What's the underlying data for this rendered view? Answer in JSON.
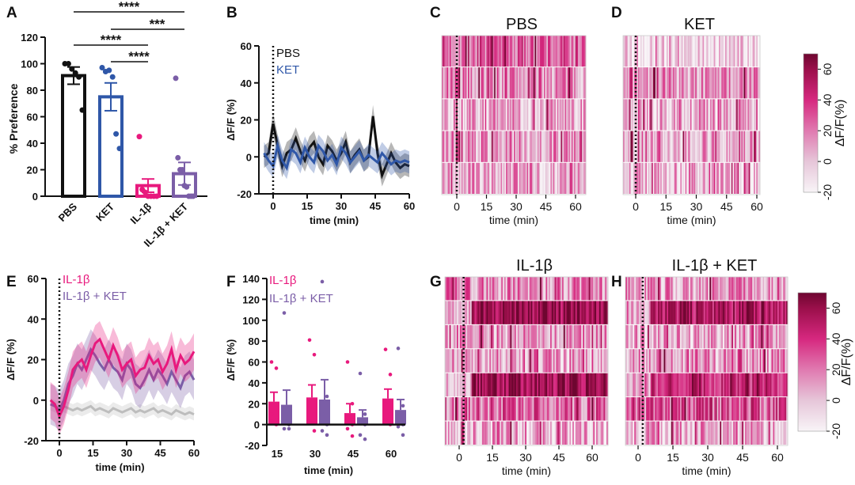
{
  "panel_labels": [
    "A",
    "B",
    "C",
    "D",
    "E",
    "F",
    "G",
    "H"
  ],
  "colors": {
    "pbs": "#111111",
    "ket": "#2f57a8",
    "il1b": "#e8197d",
    "il1b_ket": "#7b5ea7",
    "control": "#bdbdbd"
  },
  "colormap": {
    "stops": [
      -20,
      0,
      20,
      40,
      60,
      70
    ],
    "colors": [
      "#f8f4f7",
      "#e6c6d9",
      "#e07ab0",
      "#d6287f",
      "#9a0f4a",
      "#6e0630"
    ]
  },
  "chart_data": [
    {
      "panel": "A",
      "type": "bar",
      "categories": [
        "PBS",
        "KET",
        "IL-1β",
        "IL-1β + KET"
      ],
      "values": [
        91,
        75,
        8,
        17
      ],
      "sem": [
        6.5,
        10.5,
        5,
        8.5
      ],
      "points": [
        [
          100,
          100,
          96,
          93,
          90,
          65
        ],
        [
          97,
          94,
          95,
          90,
          47,
          36
        ],
        [
          45,
          5,
          3,
          0,
          0,
          0,
          0
        ],
        [
          89,
          29,
          20,
          20,
          8,
          7,
          0,
          0,
          0
        ]
      ],
      "ylabel": "% Preference",
      "ylim": [
        0,
        120
      ],
      "yticks": [
        "0",
        "20",
        "40",
        "60",
        "80",
        "100",
        "120"
      ],
      "significance": [
        {
          "from": 0,
          "to": 3,
          "label": "****"
        },
        {
          "from": 1,
          "to": 3,
          "label": "***"
        },
        {
          "from": 0,
          "to": 2,
          "label": "****"
        },
        {
          "from": 1,
          "to": 2,
          "label": "****"
        }
      ]
    },
    {
      "panel": "B",
      "type": "line",
      "xlabel": "time (min)",
      "ylabel": "ΔF/F (%)",
      "xlim": [
        -5,
        60
      ],
      "ylim": [
        -20,
        60
      ],
      "xticks": [
        "0",
        "15",
        "30",
        "45",
        "60"
      ],
      "yticks": [
        "-20",
        "0",
        "20",
        "40",
        "60"
      ],
      "x": [
        -4,
        -2,
        0,
        2,
        4,
        6,
        8,
        10,
        12,
        14,
        16,
        18,
        20,
        22,
        24,
        26,
        28,
        30,
        32,
        34,
        36,
        38,
        40,
        42,
        44,
        46,
        48,
        50,
        52,
        54,
        56,
        58,
        60
      ],
      "series": [
        {
          "name": "PBS",
          "sem": 6,
          "values": [
            0,
            2,
            18,
            6,
            -5,
            2,
            4,
            10,
            3,
            -2,
            5,
            8,
            0,
            -4,
            6,
            3,
            -2,
            2,
            8,
            -3,
            1,
            4,
            -2,
            0,
            22,
            2,
            -10,
            -4,
            2,
            -3,
            -6,
            -4,
            -5
          ]
        },
        {
          "name": "KET",
          "sem": 6,
          "values": [
            2,
            -2,
            -5,
            6,
            -2,
            -6,
            4,
            2,
            -3,
            5,
            0,
            -3,
            6,
            3,
            -2,
            1,
            -4,
            5,
            2,
            -3,
            0,
            3,
            -2,
            1,
            -1,
            -3,
            2,
            -1,
            -4,
            -2,
            -3,
            -2,
            -3
          ]
        }
      ]
    },
    {
      "panel": "C",
      "type": "heatmap",
      "title": "PBS",
      "xlabel": "time (min)",
      "xticks": [
        "0",
        "15",
        "30",
        "45",
        "60"
      ],
      "row_means": [
        25,
        15,
        5,
        10,
        5
      ],
      "onset": 0,
      "colorbar": {
        "label": "ΔF/F(%)",
        "ticks": [
          "-20",
          "0",
          "20",
          "40",
          "60"
        ],
        "range": [
          -20,
          70
        ]
      }
    },
    {
      "panel": "D",
      "type": "heatmap",
      "title": "KET",
      "xlabel": "time (min)",
      "xticks": [
        "0",
        "15",
        "30",
        "45",
        "60"
      ],
      "row_means": [
        -8,
        14,
        3,
        8,
        2
      ],
      "onset": 0
    },
    {
      "panel": "E",
      "type": "line",
      "xlabel": "time (min)",
      "ylabel": "ΔF/F (%)",
      "xlim": [
        -5,
        60
      ],
      "ylim": [
        -20,
        60
      ],
      "xticks": [
        "0",
        "15",
        "30",
        "45",
        "60"
      ],
      "yticks": [
        "-20",
        "0",
        "20",
        "40",
        "60"
      ],
      "x": [
        -4,
        -2,
        0,
        2,
        4,
        6,
        8,
        10,
        12,
        14,
        16,
        18,
        20,
        22,
        24,
        26,
        28,
        30,
        32,
        34,
        36,
        38,
        40,
        42,
        44,
        46,
        48,
        50,
        52,
        54,
        56,
        58,
        60
      ],
      "series": [
        {
          "name": "",
          "sem": 3,
          "values": [
            -2,
            -3,
            -4,
            -3,
            -4,
            -5,
            -4,
            -5,
            -4,
            -3,
            -5,
            -4,
            -5,
            -6,
            -4,
            -5,
            -6,
            -5,
            -4,
            -6,
            -5,
            -6,
            -5,
            -4,
            -6,
            -5,
            -6,
            -7,
            -5,
            -6,
            -7,
            -6,
            -7
          ]
        },
        {
          "name": "IL-1β + KET",
          "sem": 10,
          "values": [
            -2,
            -3,
            -5,
            0,
            8,
            12,
            18,
            15,
            20,
            25,
            22,
            18,
            15,
            20,
            16,
            14,
            10,
            18,
            15,
            8,
            6,
            10,
            15,
            10,
            15,
            12,
            8,
            14,
            10,
            6,
            12,
            14,
            10
          ]
        },
        {
          "name": "IL-1β",
          "sem": 9,
          "values": [
            0,
            -2,
            -8,
            -3,
            5,
            15,
            18,
            20,
            15,
            22,
            28,
            30,
            25,
            20,
            27,
            22,
            15,
            18,
            20,
            12,
            15,
            16,
            22,
            18,
            20,
            14,
            18,
            25,
            15,
            22,
            18,
            20,
            24
          ]
        }
      ]
    },
    {
      "panel": "F",
      "type": "bar",
      "categories": [
        "15",
        "30",
        "45",
        "60"
      ],
      "xlabel": "time (min)",
      "ylabel": "ΔF/F (%)",
      "ylim": [
        -20,
        140
      ],
      "yticks": [
        "-20",
        "0",
        "20",
        "40",
        "60",
        "80",
        "100",
        "120",
        "140"
      ],
      "series": [
        {
          "name": "IL-1β",
          "values": [
            22,
            26,
            11,
            25
          ],
          "sem": [
            9,
            12,
            9,
            9
          ],
          "points": [
            [
              60,
              54,
              10,
              5,
              3,
              0
            ],
            [
              81,
              67,
              15,
              10,
              3,
              -6
            ],
            [
              60,
              20,
              5,
              0,
              -4,
              -11
            ],
            [
              72,
              48,
              20,
              10,
              5,
              0
            ]
          ]
        },
        {
          "name": "IL-1β + KET",
          "values": [
            19,
            24,
            7,
            14
          ],
          "sem": [
            14,
            19,
            7,
            10
          ],
          "points": [
            [
              107,
              10,
              5,
              0,
              -4,
              -4
            ],
            [
              137,
              27,
              10,
              0,
              -6,
              -10
            ],
            [
              49,
              10,
              5,
              0,
              -10,
              -14
            ],
            [
              73,
              18,
              5,
              0,
              -2,
              -10
            ]
          ]
        }
      ]
    },
    {
      "panel": "G",
      "type": "heatmap",
      "title": "IL-1β",
      "xlabel": "time (min)",
      "xticks": [
        "0",
        "15",
        "30",
        "45",
        "60"
      ],
      "row_means": [
        15,
        58,
        10,
        8,
        58,
        22,
        5
      ],
      "onset": 5
    },
    {
      "panel": "H",
      "type": "heatmap",
      "title": "IL-1β + KET",
      "xlabel": "time (min)",
      "xticks": [
        "0",
        "15",
        "30",
        "45",
        "60"
      ],
      "row_means": [
        10,
        50,
        8,
        12,
        42,
        28,
        5
      ],
      "onset": 5,
      "colorbar": {
        "label": "ΔF/F(%)",
        "ticks": [
          "-20",
          "0",
          "20",
          "40",
          "60"
        ],
        "range": [
          -20,
          70
        ]
      }
    }
  ]
}
